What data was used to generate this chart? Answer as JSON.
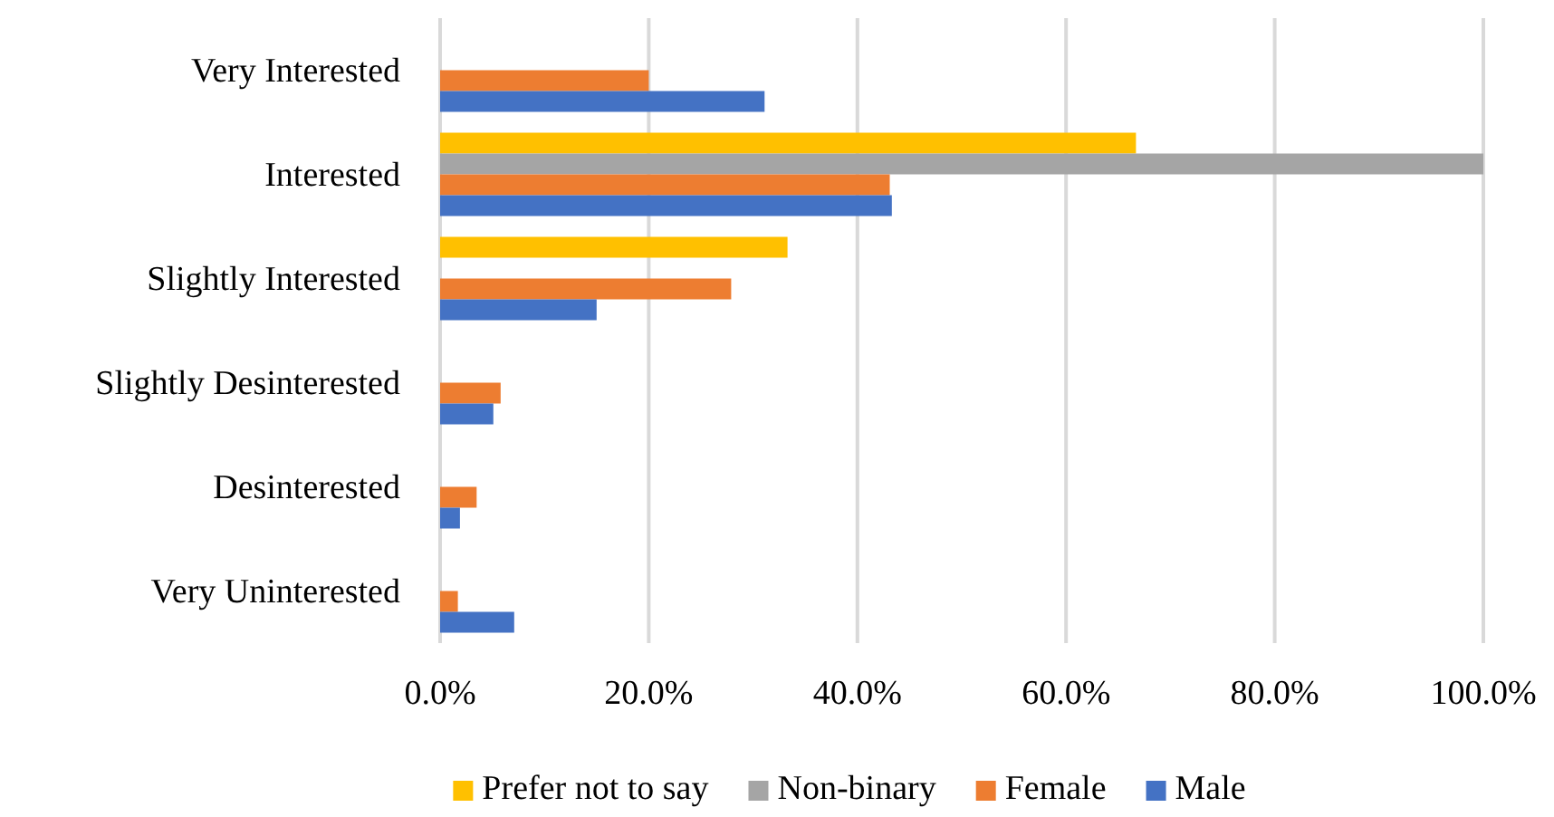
{
  "chart_data": {
    "type": "bar",
    "orientation": "horizontal",
    "categories": [
      "Very Interested",
      "Interested",
      "Slightly Interested",
      "Slightly Desinterested",
      "Desinterested",
      "Very Uninterested"
    ],
    "series": [
      {
        "name": "Prefer not to say",
        "color": "#ffc000",
        "values": [
          null,
          66.7,
          33.3,
          null,
          null,
          null
        ]
      },
      {
        "name": "Non-binary",
        "color": "#a5a5a5",
        "values": [
          null,
          100,
          null,
          null,
          null,
          null
        ]
      },
      {
        "name": "Female",
        "color": "#ed7d31",
        "values": [
          20.0,
          43.1,
          27.9,
          5.8,
          3.5,
          1.7
        ]
      },
      {
        "name": "Male",
        "color": "#4472c4",
        "values": [
          31.1,
          43.3,
          15.0,
          5.1,
          1.9,
          7.1
        ]
      }
    ],
    "xlim": [
      0,
      100
    ],
    "xticks": [
      {
        "value": 0,
        "label": "0.0%"
      },
      {
        "value": 20,
        "label": "20.0%"
      },
      {
        "value": 40,
        "label": "40.0%"
      },
      {
        "value": 60,
        "label": "60.0%"
      },
      {
        "value": 80,
        "label": "80.0%"
      },
      {
        "value": 100,
        "label": "100.0%"
      }
    ],
    "grid": "x",
    "legend": "bottom"
  }
}
